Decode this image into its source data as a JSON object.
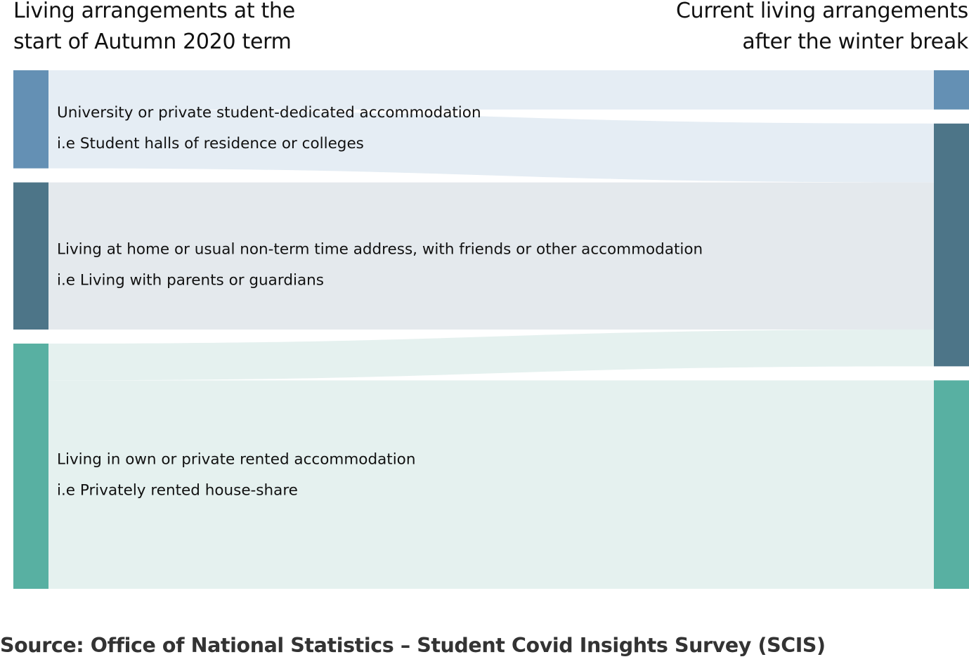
{
  "header": {
    "left_line1": "Living arrangements at the",
    "left_line2": "start of Autumn 2020 term",
    "right_line1": "Current living arrangements",
    "right_line2": "after the winter break"
  },
  "colors": {
    "university": "#6490b4",
    "home": "#4d7588",
    "rented": "#58b0a2"
  },
  "chart_data": {
    "type": "sankey",
    "columns": [
      "Living arrangements at the start of Autumn 2020 term",
      "Current living arrangements after the winter break"
    ],
    "nodes": [
      {
        "id": "university",
        "label": "University or private student-dedicated accommodation",
        "sublabel": "i.e Student halls of residence or colleges",
        "color": "#6490b4"
      },
      {
        "id": "home",
        "label": "Living at home or usual non-term time address, with friends or other accommodation",
        "sublabel": "i.e Living with parents or guardians",
        "color": "#4d7588"
      },
      {
        "id": "rented",
        "label": "Living in own or private rented accommodation",
        "sublabel": "i.e Privately rented house-share",
        "color": "#58b0a2"
      }
    ],
    "links": [
      {
        "source": "university",
        "target": "university",
        "value": 8,
        "color": "#e5edf4"
      },
      {
        "source": "university",
        "target": "home",
        "value": 12,
        "color": "#e5edf4"
      },
      {
        "source": "home",
        "target": "home",
        "value": 30,
        "color": "#e4e9ed"
      },
      {
        "source": "rented",
        "target": "home",
        "value": 7.5,
        "color": "#e5f1ef"
      },
      {
        "source": "rented",
        "target": "rented",
        "value": 42.5,
        "color": "#e5f1ef"
      }
    ]
  },
  "source": "Source: Office of National Statistics – Student Covid Insights Survey (SCIS)"
}
